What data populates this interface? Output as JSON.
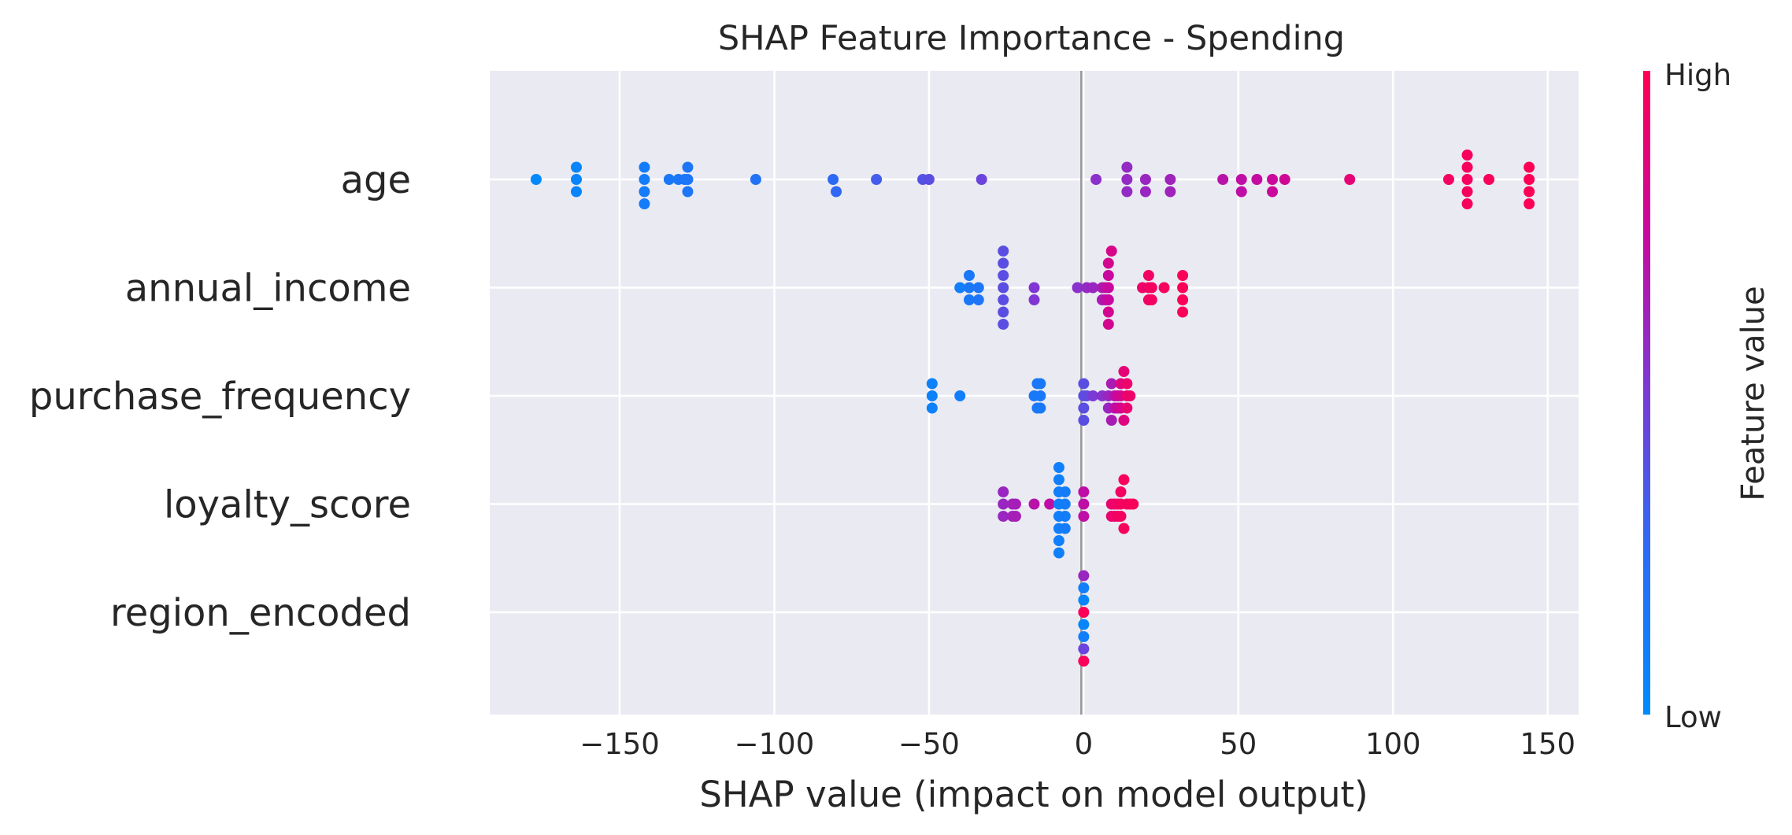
{
  "chart_data": {
    "type": "scatter",
    "subtype": "shap-beeswarm",
    "title": "SHAP Feature Importance - Spending",
    "xlabel": "SHAP value (impact on model output)",
    "xlim": [
      -192,
      160
    ],
    "xticks": [
      -150,
      -100,
      -50,
      0,
      50,
      100,
      150
    ],
    "xtick_labels": [
      "−150",
      "−100",
      "−50",
      "0",
      "50",
      "100",
      "150"
    ],
    "grid": true,
    "colorbar": {
      "label": "Feature value",
      "high_label": "High",
      "low_label": "Low",
      "low_color": "#008bfb",
      "high_color": "#ff0052"
    },
    "features": [
      {
        "name": "age",
        "points": [
          {
            "x": -177,
            "level": 0.02
          },
          {
            "x": -164,
            "level": 0.05
          },
          {
            "x": -164,
            "level": 0.05
          },
          {
            "x": -164,
            "level": 0.05
          },
          {
            "x": -142,
            "level": 0.12
          },
          {
            "x": -142,
            "level": 0.12
          },
          {
            "x": -142,
            "level": 0.12
          },
          {
            "x": -142,
            "level": 0.12
          },
          {
            "x": -134,
            "level": 0.15
          },
          {
            "x": -131,
            "level": 0.16
          },
          {
            "x": -129,
            "level": 0.16
          },
          {
            "x": -128,
            "level": 0.17
          },
          {
            "x": -128,
            "level": 0.17
          },
          {
            "x": -128,
            "level": 0.17
          },
          {
            "x": -106,
            "level": 0.2
          },
          {
            "x": -81,
            "level": 0.26
          },
          {
            "x": -80,
            "level": 0.27
          },
          {
            "x": -67,
            "level": 0.33
          },
          {
            "x": -52,
            "level": 0.38
          },
          {
            "x": -50,
            "level": 0.4
          },
          {
            "x": -33,
            "level": 0.45
          },
          {
            "x": 4,
            "level": 0.55
          },
          {
            "x": 14,
            "level": 0.58
          },
          {
            "x": 14,
            "level": 0.58
          },
          {
            "x": 14,
            "level": 0.58
          },
          {
            "x": 20,
            "level": 0.6
          },
          {
            "x": 20,
            "level": 0.6
          },
          {
            "x": 28,
            "level": 0.62
          },
          {
            "x": 28,
            "level": 0.62
          },
          {
            "x": 45,
            "level": 0.7
          },
          {
            "x": 51,
            "level": 0.72
          },
          {
            "x": 51,
            "level": 0.72
          },
          {
            "x": 56,
            "level": 0.74
          },
          {
            "x": 61,
            "level": 0.76
          },
          {
            "x": 61,
            "level": 0.76
          },
          {
            "x": 65,
            "level": 0.78
          },
          {
            "x": 86,
            "level": 0.88
          },
          {
            "x": 118,
            "level": 0.95
          },
          {
            "x": 124,
            "level": 0.96
          },
          {
            "x": 124,
            "level": 0.96
          },
          {
            "x": 124,
            "level": 0.96
          },
          {
            "x": 124,
            "level": 0.96
          },
          {
            "x": 124,
            "level": 0.96
          },
          {
            "x": 131,
            "level": 0.97
          },
          {
            "x": 144,
            "level": 0.99
          },
          {
            "x": 144,
            "level": 0.99
          },
          {
            "x": 144,
            "level": 0.99
          },
          {
            "x": 144,
            "level": 0.99
          }
        ]
      },
      {
        "name": "annual_income",
        "points": [
          {
            "x": -40,
            "level": 0.1
          },
          {
            "x": -37,
            "level": 0.15
          },
          {
            "x": -37,
            "level": 0.15
          },
          {
            "x": -37,
            "level": 0.15
          },
          {
            "x": -34,
            "level": 0.18
          },
          {
            "x": -34,
            "level": 0.18
          },
          {
            "x": -26,
            "level": 0.4
          },
          {
            "x": -26,
            "level": 0.4
          },
          {
            "x": -26,
            "level": 0.4
          },
          {
            "x": -26,
            "level": 0.4
          },
          {
            "x": -26,
            "level": 0.4
          },
          {
            "x": -26,
            "level": 0.4
          },
          {
            "x": -26,
            "level": 0.4
          },
          {
            "x": -16,
            "level": 0.52
          },
          {
            "x": -16,
            "level": 0.52
          },
          {
            "x": -2,
            "level": 0.55
          },
          {
            "x": 1,
            "level": 0.58
          },
          {
            "x": 3,
            "level": 0.6
          },
          {
            "x": 6,
            "level": 0.65
          },
          {
            "x": 6,
            "level": 0.65
          },
          {
            "x": 7,
            "level": 0.7
          },
          {
            "x": 7,
            "level": 0.7
          },
          {
            "x": 8,
            "level": 0.75
          },
          {
            "x": 8,
            "level": 0.75
          },
          {
            "x": 8,
            "level": 0.75
          },
          {
            "x": 8,
            "level": 0.8
          },
          {
            "x": 8,
            "level": 0.8
          },
          {
            "x": 8,
            "level": 0.8
          },
          {
            "x": 9,
            "level": 0.82
          },
          {
            "x": 19,
            "level": 0.92
          },
          {
            "x": 21,
            "level": 0.94
          },
          {
            "x": 21,
            "level": 0.94
          },
          {
            "x": 21,
            "level": 0.94
          },
          {
            "x": 22,
            "level": 0.95
          },
          {
            "x": 22,
            "level": 0.95
          },
          {
            "x": 26,
            "level": 0.96
          },
          {
            "x": 32,
            "level": 0.98
          },
          {
            "x": 32,
            "level": 0.98
          },
          {
            "x": 32,
            "level": 0.98
          },
          {
            "x": 32,
            "level": 0.98
          }
        ]
      },
      {
        "name": "purchase_frequency",
        "points": [
          {
            "x": -49,
            "level": 0.08
          },
          {
            "x": -49,
            "level": 0.08
          },
          {
            "x": -49,
            "level": 0.08
          },
          {
            "x": -40,
            "level": 0.1
          },
          {
            "x": -16,
            "level": 0.15
          },
          {
            "x": -15,
            "level": 0.15
          },
          {
            "x": -15,
            "level": 0.15
          },
          {
            "x": -14,
            "level": 0.15
          },
          {
            "x": -14,
            "level": 0.15
          },
          {
            "x": -14,
            "level": 0.15
          },
          {
            "x": 0,
            "level": 0.4
          },
          {
            "x": 0,
            "level": 0.4
          },
          {
            "x": 0,
            "level": 0.4
          },
          {
            "x": 0,
            "level": 0.4
          },
          {
            "x": 1,
            "level": 0.42
          },
          {
            "x": 3,
            "level": 0.5
          },
          {
            "x": 6,
            "level": 0.55
          },
          {
            "x": 8,
            "level": 0.6
          },
          {
            "x": 8,
            "level": 0.6
          },
          {
            "x": 9,
            "level": 0.65
          },
          {
            "x": 9,
            "level": 0.65
          },
          {
            "x": 10,
            "level": 0.7
          },
          {
            "x": 10,
            "level": 0.7
          },
          {
            "x": 11,
            "level": 0.75
          },
          {
            "x": 11,
            "level": 0.75
          },
          {
            "x": 12,
            "level": 0.8
          },
          {
            "x": 12,
            "level": 0.8
          },
          {
            "x": 12,
            "level": 0.85
          },
          {
            "x": 13,
            "level": 0.85
          },
          {
            "x": 13,
            "level": 0.88
          },
          {
            "x": 14,
            "level": 0.9
          },
          {
            "x": 14,
            "level": 0.9
          },
          {
            "x": 14,
            "level": 0.92
          },
          {
            "x": 15,
            "level": 0.92
          }
        ]
      },
      {
        "name": "loyalty_score",
        "points": [
          {
            "x": -26,
            "level": 0.6
          },
          {
            "x": -26,
            "level": 0.6
          },
          {
            "x": -26,
            "level": 0.6
          },
          {
            "x": -23,
            "level": 0.62
          },
          {
            "x": -23,
            "level": 0.62
          },
          {
            "x": -22,
            "level": 0.64
          },
          {
            "x": -22,
            "level": 0.64
          },
          {
            "x": -16,
            "level": 0.7
          },
          {
            "x": -11,
            "level": 0.72
          },
          {
            "x": -8,
            "level": 0.1
          },
          {
            "x": -8,
            "level": 0.1
          },
          {
            "x": -8,
            "level": 0.1
          },
          {
            "x": -8,
            "level": 0.1
          },
          {
            "x": -8,
            "level": 0.1
          },
          {
            "x": -8,
            "level": 0.1
          },
          {
            "x": -8,
            "level": 0.1
          },
          {
            "x": -8,
            "level": 0.1
          },
          {
            "x": -6,
            "level": 0.12
          },
          {
            "x": -6,
            "level": 0.12
          },
          {
            "x": -6,
            "level": 0.12
          },
          {
            "x": -6,
            "level": 0.12
          },
          {
            "x": 0,
            "level": 0.72
          },
          {
            "x": 0,
            "level": 0.72
          },
          {
            "x": 0,
            "level": 0.72
          },
          {
            "x": 9,
            "level": 0.9
          },
          {
            "x": 9,
            "level": 0.9
          },
          {
            "x": 10,
            "level": 0.92
          },
          {
            "x": 10,
            "level": 0.92
          },
          {
            "x": 11,
            "level": 0.94
          },
          {
            "x": 11,
            "level": 0.94
          },
          {
            "x": 12,
            "level": 0.95
          },
          {
            "x": 12,
            "level": 0.95
          },
          {
            "x": 12,
            "level": 0.95
          },
          {
            "x": 13,
            "level": 0.96
          },
          {
            "x": 13,
            "level": 0.96
          },
          {
            "x": 14,
            "level": 0.96
          },
          {
            "x": 15,
            "level": 0.97
          },
          {
            "x": 16,
            "level": 0.97
          }
        ]
      },
      {
        "name": "region_encoded",
        "points": [
          {
            "x": 0,
            "level": 0.98
          },
          {
            "x": 0,
            "level": 0.05
          },
          {
            "x": 0,
            "level": 0.05
          },
          {
            "x": 0,
            "level": 0.1
          },
          {
            "x": 0,
            "level": 0.1
          },
          {
            "x": 0,
            "level": 0.45
          },
          {
            "x": 0,
            "level": 0.6
          },
          {
            "x": 0,
            "level": 0.98
          }
        ]
      }
    ]
  }
}
